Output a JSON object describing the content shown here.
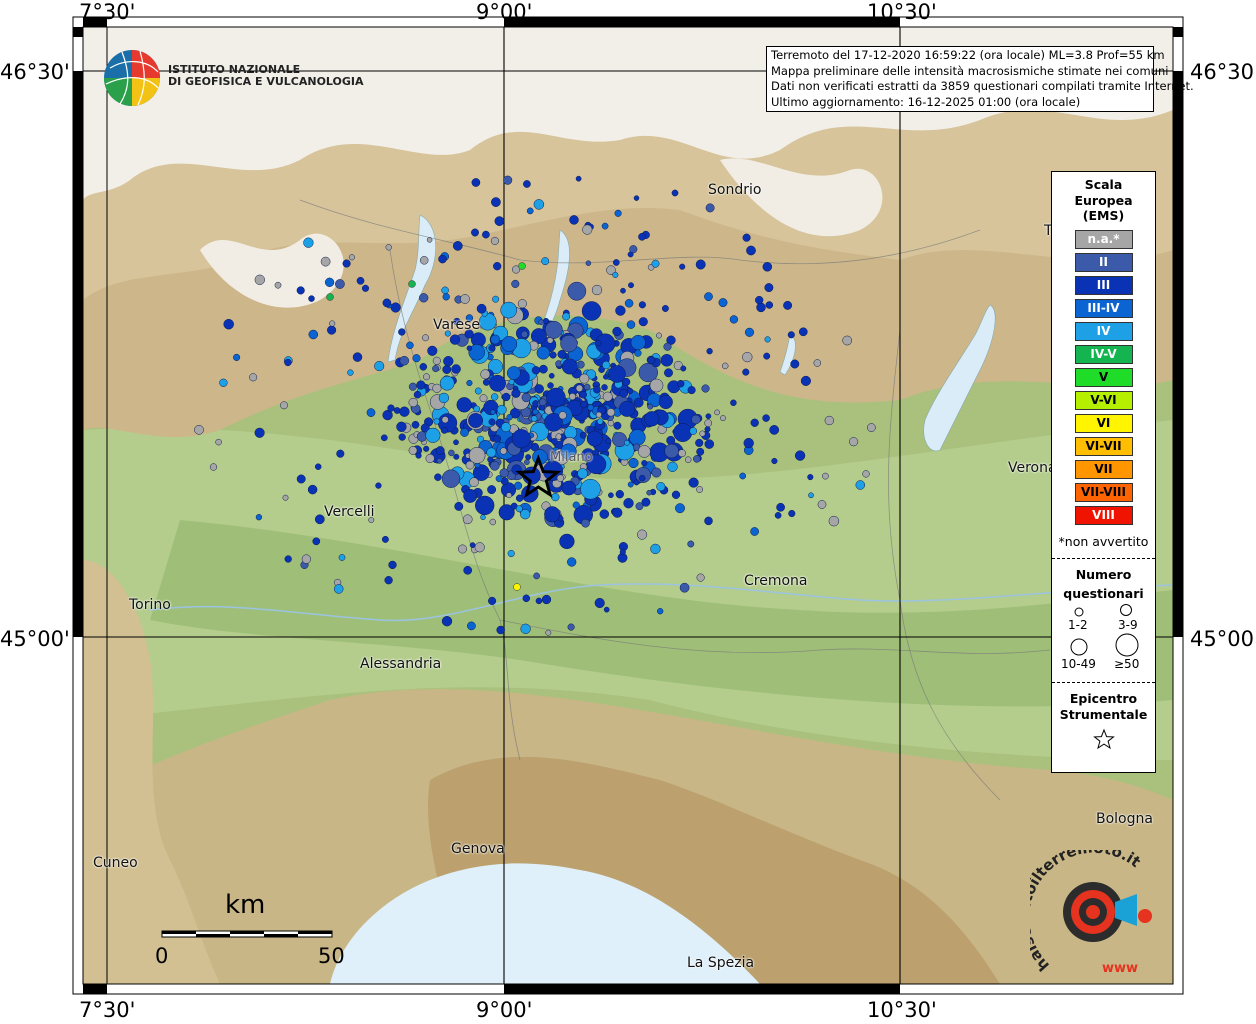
{
  "title_lines": [
    "Terremoto del 17-12-2020 16:59:22 (ora locale) ML=3.8 Prof=55 km",
    "Mappa preliminare delle intensità macrosismiche stimate nei comuni",
    "Dati non verificati estratti da 3859 questionari compilati tramite Internet.",
    "Ultimo aggiornamento: 16-12-2025 01:00 (ora locale)"
  ],
  "coords": {
    "lon_left": "7°30'",
    "lon_mid": "9°00'",
    "lon_right": "10°30'",
    "lat_top": "46°30'",
    "lat_bottom": "45°00'"
  },
  "ingv": {
    "line1": "ISTITUTO NAZIONALE",
    "line2": "DI GEOFISICA E VULCANOLOGIA"
  },
  "legend": {
    "title": [
      "Scala",
      "Europea",
      "(EMS)"
    ],
    "levels": [
      {
        "label": "n.a.*",
        "color": "#a6a6a6",
        "dark": false
      },
      {
        "label": "II",
        "color": "#3c5aaa",
        "dark": false
      },
      {
        "label": "III",
        "color": "#0a32b4",
        "dark": false
      },
      {
        "label": "III-IV",
        "color": "#0a64d2",
        "dark": false
      },
      {
        "label": "IV",
        "color": "#1ea0e6",
        "dark": false
      },
      {
        "label": "IV-V",
        "color": "#14b450",
        "dark": false
      },
      {
        "label": "V",
        "color": "#1edc28",
        "dark": true
      },
      {
        "label": "V-VI",
        "color": "#b4f000",
        "dark": true
      },
      {
        "label": "VI",
        "color": "#fff500",
        "dark": true
      },
      {
        "label": "VI-VII",
        "color": "#ffbe00",
        "dark": true
      },
      {
        "label": "VII",
        "color": "#ff9600",
        "dark": true
      },
      {
        "label": "VII-VIII",
        "color": "#ff6400",
        "dark": true
      },
      {
        "label": "VIII",
        "color": "#f01400",
        "dark": false
      }
    ],
    "not_felt": "*non avvertito",
    "count_title": [
      "Numero",
      "questionari"
    ],
    "count_labels": [
      "1-2",
      "3-9",
      "10-49",
      "≥50"
    ],
    "epicenter_title": [
      "Epicentro",
      "Strumentale"
    ]
  },
  "places": {
    "sondrio": "Sondrio",
    "varese": "Varese",
    "vercelli": "Vercelli",
    "torino": "Torino",
    "alessandria": "Alessandria",
    "cremona": "Cremona",
    "verona": "Verona",
    "bologna": "Bologna",
    "genova": "Genova",
    "la_spezia": "La Spezia",
    "cuneo": "Cuneo",
    "milano": "Milano",
    "t_cut": "T"
  },
  "scale": {
    "unit": "km",
    "min": "0",
    "max": "50"
  },
  "site": {
    "name": "haisentitoilterremoto.it",
    "www": "www"
  },
  "epicenter": {
    "lon": 9.13,
    "lat": 45.42
  }
}
